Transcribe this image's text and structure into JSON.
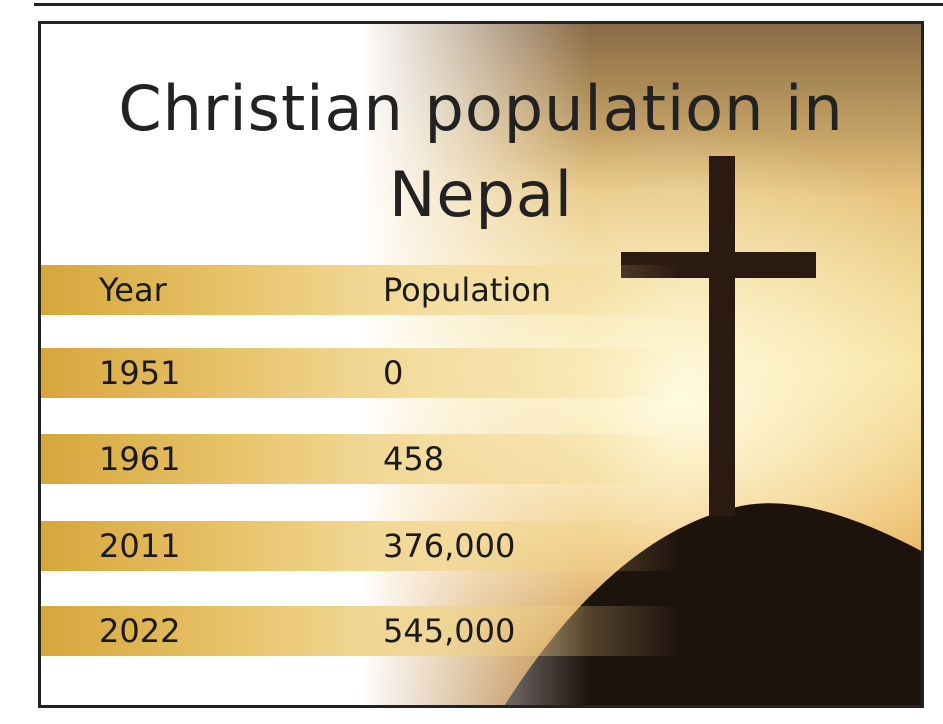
{
  "header": {
    "title": "Christian population in Nepal"
  },
  "table": {
    "columns": [
      "Year",
      "Population"
    ],
    "rows": [
      [
        "1951",
        "0"
      ],
      [
        "1961",
        "458"
      ],
      [
        "2011",
        "376,000"
      ],
      [
        "2022",
        "545,000"
      ]
    ]
  }
}
